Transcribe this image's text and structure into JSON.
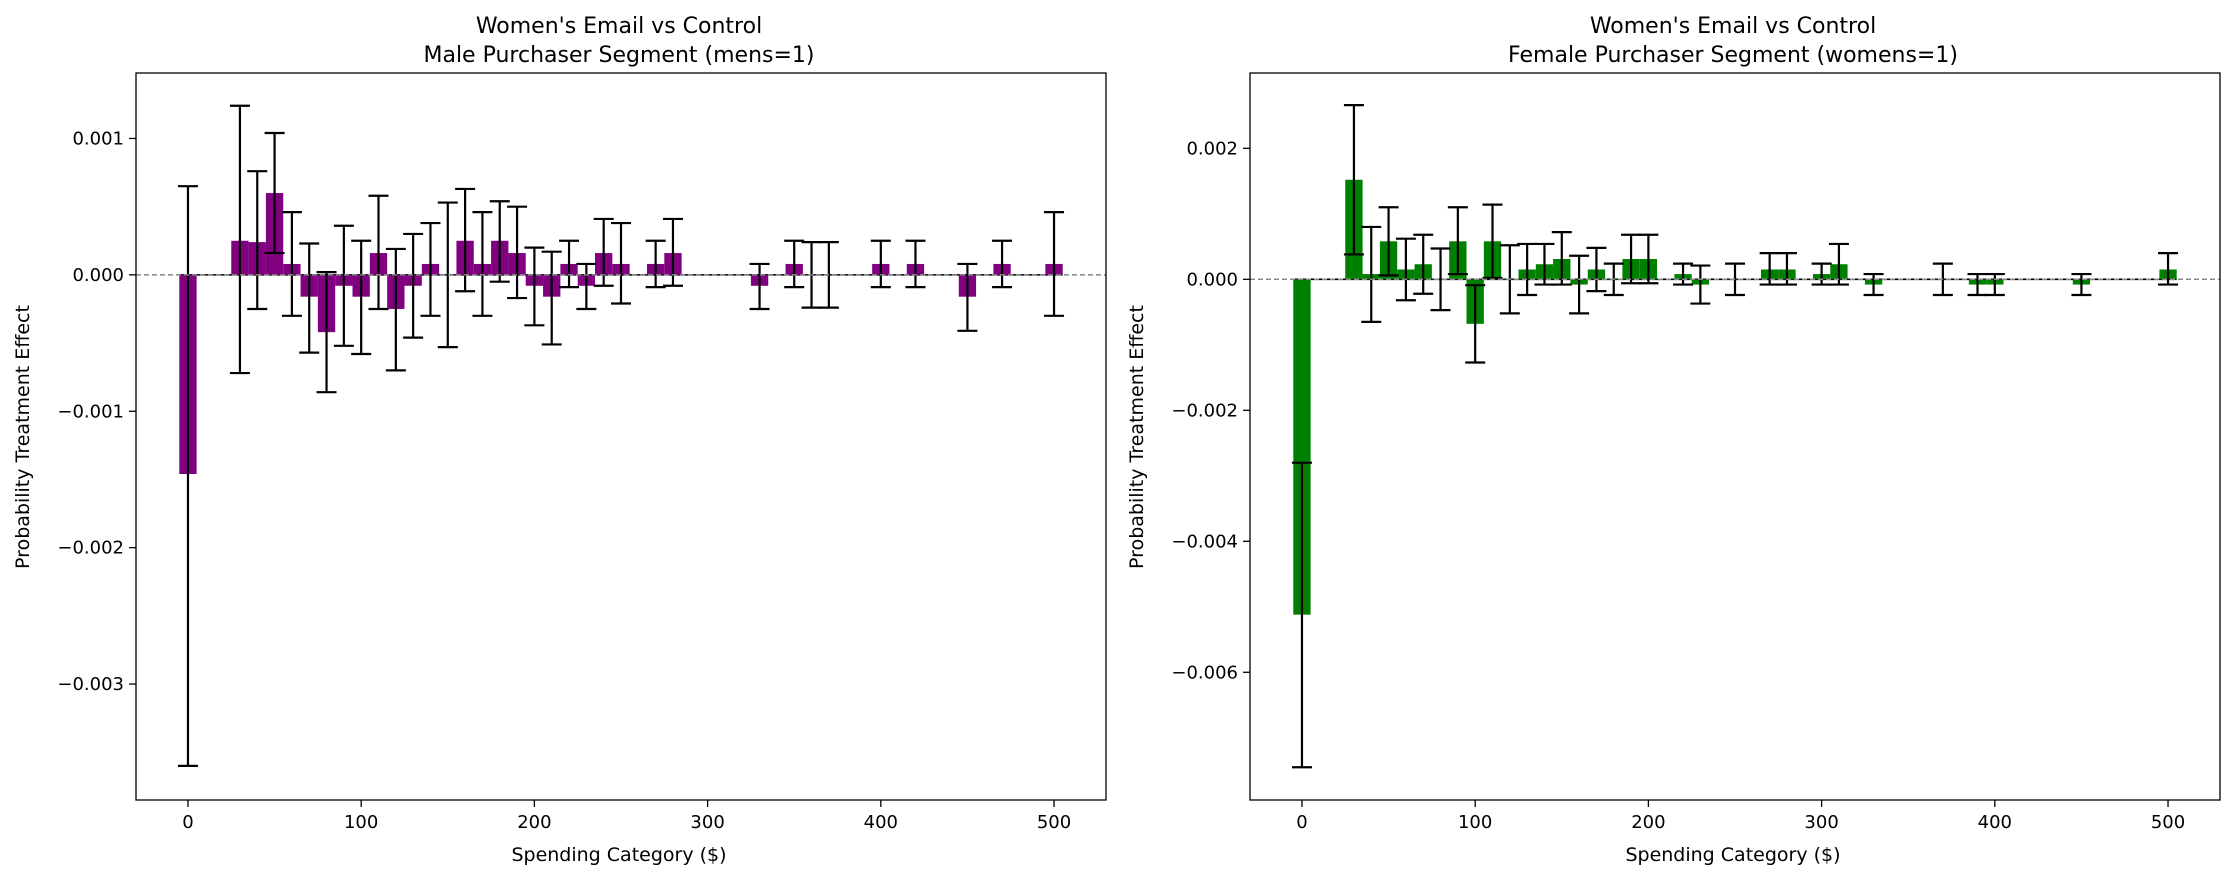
{
  "chart_data": [
    {
      "type": "bar",
      "title": "Women's Email vs Control",
      "subtitle": "Male Purchaser Segment (mens=1)",
      "xlabel": "Spending Category ($)",
      "ylabel": "Probability Treatment Effect",
      "xlim": [
        -30,
        530
      ],
      "ylim": [
        -0.00385,
        0.00148
      ],
      "xticks": [
        0,
        100,
        200,
        300,
        400,
        500
      ],
      "xtick_labels": [
        "0",
        "100",
        "200",
        "300",
        "400",
        "500"
      ],
      "yticks": [
        -0.003,
        -0.002,
        -0.001,
        0.0,
        0.001
      ],
      "ytick_labels": [
        "−0.003",
        "−0.002",
        "−0.001",
        "0.000",
        "0.001"
      ],
      "bar_color": "#800080",
      "bar_width": 10,
      "zero_line": "dashed gray",
      "points": [
        {
          "x": 0,
          "y": -0.00146,
          "lo": -0.0036,
          "hi": 0.00065
        },
        {
          "x": 30,
          "y": 0.00025,
          "lo": -0.00072,
          "hi": 0.00124
        },
        {
          "x": 40,
          "y": 0.00024,
          "lo": -0.00025,
          "hi": 0.00076
        },
        {
          "x": 50,
          "y": 0.0006,
          "lo": 0.00016,
          "hi": 0.00104
        },
        {
          "x": 60,
          "y": 8e-05,
          "lo": -0.0003,
          "hi": 0.00046
        },
        {
          "x": 70,
          "y": -0.00016,
          "lo": -0.00057,
          "hi": 0.00023
        },
        {
          "x": 80,
          "y": -0.00042,
          "lo": -0.00086,
          "hi": 2e-05
        },
        {
          "x": 90,
          "y": -8e-05,
          "lo": -0.00052,
          "hi": 0.00036
        },
        {
          "x": 100,
          "y": -0.00016,
          "lo": -0.00058,
          "hi": 0.00025
        },
        {
          "x": 110,
          "y": 0.00016,
          "lo": -0.00025,
          "hi": 0.00058
        },
        {
          "x": 120,
          "y": -0.00025,
          "lo": -0.0007,
          "hi": 0.00019
        },
        {
          "x": 130,
          "y": -8e-05,
          "lo": -0.00046,
          "hi": 0.0003
        },
        {
          "x": 140,
          "y": 8e-05,
          "lo": -0.0003,
          "hi": 0.00038
        },
        {
          "x": 150,
          "y": 0.0,
          "lo": -0.00053,
          "hi": 0.00053
        },
        {
          "x": 160,
          "y": 0.00025,
          "lo": -0.00012,
          "hi": 0.00063
        },
        {
          "x": 170,
          "y": 8e-05,
          "lo": -0.0003,
          "hi": 0.00046
        },
        {
          "x": 180,
          "y": 0.00025,
          "lo": -5e-05,
          "hi": 0.00054
        },
        {
          "x": 190,
          "y": 0.00016,
          "lo": -0.00017,
          "hi": 0.0005
        },
        {
          "x": 200,
          "y": -8e-05,
          "lo": -0.00037,
          "hi": 0.0002
        },
        {
          "x": 210,
          "y": -0.00016,
          "lo": -0.00051,
          "hi": 0.00017
        },
        {
          "x": 220,
          "y": 8e-05,
          "lo": -9e-05,
          "hi": 0.00025
        },
        {
          "x": 230,
          "y": -8e-05,
          "lo": -0.00025,
          "hi": 8e-05
        },
        {
          "x": 240,
          "y": 0.00016,
          "lo": -8e-05,
          "hi": 0.00041
        },
        {
          "x": 250,
          "y": 8e-05,
          "lo": -0.00021,
          "hi": 0.00038
        },
        {
          "x": 270,
          "y": 8e-05,
          "lo": -9e-05,
          "hi": 0.00025
        },
        {
          "x": 280,
          "y": 0.00016,
          "lo": -8e-05,
          "hi": 0.00041
        },
        {
          "x": 330,
          "y": -8e-05,
          "lo": -0.00025,
          "hi": 8e-05
        },
        {
          "x": 350,
          "y": 8e-05,
          "lo": -9e-05,
          "hi": 0.00025
        },
        {
          "x": 360,
          "y": 0.0,
          "lo": -0.00024,
          "hi": 0.00024
        },
        {
          "x": 370,
          "y": 0.0,
          "lo": -0.00024,
          "hi": 0.00024
        },
        {
          "x": 400,
          "y": 8e-05,
          "lo": -9e-05,
          "hi": 0.00025
        },
        {
          "x": 420,
          "y": 8e-05,
          "lo": -9e-05,
          "hi": 0.00025
        },
        {
          "x": 450,
          "y": -0.00016,
          "lo": -0.00041,
          "hi": 8e-05
        },
        {
          "x": 470,
          "y": 8e-05,
          "lo": -9e-05,
          "hi": 0.00025
        },
        {
          "x": 500,
          "y": 8e-05,
          "lo": -0.0003,
          "hi": 0.00046
        }
      ]
    },
    {
      "type": "bar",
      "title": "Women's Email vs Control",
      "subtitle": "Female Purchaser Segment (womens=1)",
      "xlabel": "Spending Category ($)",
      "ylabel": "Probability Treatment Effect",
      "xlim": [
        -30,
        530
      ],
      "ylim": [
        -0.00795,
        0.00315
      ],
      "xticks": [
        0,
        100,
        200,
        300,
        400,
        500
      ],
      "xtick_labels": [
        "0",
        "100",
        "200",
        "300",
        "400",
        "500"
      ],
      "yticks": [
        -0.006,
        -0.004,
        -0.002,
        0.0,
        0.002
      ],
      "ytick_labels": [
        "−0.006",
        "−0.004",
        "−0.002",
        "0.000",
        "0.002"
      ],
      "bar_color": "#008000",
      "bar_width": 10,
      "zero_line": "dashed gray",
      "points": [
        {
          "x": 0,
          "y": -0.00512,
          "lo": -0.00745,
          "hi": -0.0028
        },
        {
          "x": 30,
          "y": 0.00152,
          "lo": 0.00038,
          "hi": 0.00266
        },
        {
          "x": 40,
          "y": 8e-05,
          "lo": -0.00065,
          "hi": 0.0008
        },
        {
          "x": 50,
          "y": 0.00058,
          "lo": 6e-05,
          "hi": 0.0011
        },
        {
          "x": 60,
          "y": 0.00015,
          "lo": -0.00032,
          "hi": 0.00062
        },
        {
          "x": 70,
          "y": 0.00023,
          "lo": -0.00022,
          "hi": 0.00068
        },
        {
          "x": 80,
          "y": 0.0,
          "lo": -0.00047,
          "hi": 0.00047
        },
        {
          "x": 90,
          "y": 0.00058,
          "lo": 8e-05,
          "hi": 0.0011
        },
        {
          "x": 100,
          "y": -0.00068,
          "lo": -0.00127,
          "hi": -9e-05
        },
        {
          "x": 110,
          "y": 0.00058,
          "lo": 2e-05,
          "hi": 0.00114
        },
        {
          "x": 120,
          "y": 0.0,
          "lo": -0.00052,
          "hi": 0.00052
        },
        {
          "x": 130,
          "y": 0.00015,
          "lo": -0.00024,
          "hi": 0.00054
        },
        {
          "x": 140,
          "y": 0.00023,
          "lo": -8e-05,
          "hi": 0.00054
        },
        {
          "x": 150,
          "y": 0.00031,
          "lo": -8e-05,
          "hi": 0.00072
        },
        {
          "x": 160,
          "y": -8e-05,
          "lo": -0.00052,
          "hi": 0.00036
        },
        {
          "x": 170,
          "y": 0.00015,
          "lo": -0.00018,
          "hi": 0.00048
        },
        {
          "x": 180,
          "y": 0.0,
          "lo": -0.00024,
          "hi": 0.00024
        },
        {
          "x": 190,
          "y": 0.00031,
          "lo": -6e-05,
          "hi": 0.00068
        },
        {
          "x": 200,
          "y": 0.00031,
          "lo": -6e-05,
          "hi": 0.00068
        },
        {
          "x": 220,
          "y": 8e-05,
          "lo": -8e-05,
          "hi": 0.00024
        },
        {
          "x": 230,
          "y": -8e-05,
          "lo": -0.00037,
          "hi": 0.00021
        },
        {
          "x": 250,
          "y": 0.0,
          "lo": -0.00024,
          "hi": 0.00024
        },
        {
          "x": 270,
          "y": 0.00015,
          "lo": -8e-05,
          "hi": 0.0004
        },
        {
          "x": 280,
          "y": 0.00015,
          "lo": -8e-05,
          "hi": 0.0004
        },
        {
          "x": 300,
          "y": 8e-05,
          "lo": -8e-05,
          "hi": 0.00024
        },
        {
          "x": 310,
          "y": 0.00023,
          "lo": -8e-05,
          "hi": 0.00054
        },
        {
          "x": 330,
          "y": -8e-05,
          "lo": -0.00024,
          "hi": 8e-05
        },
        {
          "x": 370,
          "y": 0.0,
          "lo": -0.00024,
          "hi": 0.00024
        },
        {
          "x": 390,
          "y": -8e-05,
          "lo": -0.00024,
          "hi": 8e-05
        },
        {
          "x": 400,
          "y": -8e-05,
          "lo": -0.00024,
          "hi": 8e-05
        },
        {
          "x": 450,
          "y": -8e-05,
          "lo": -0.00024,
          "hi": 8e-05
        },
        {
          "x": 500,
          "y": 0.00015,
          "lo": -8e-05,
          "hi": 0.0004
        }
      ]
    }
  ]
}
